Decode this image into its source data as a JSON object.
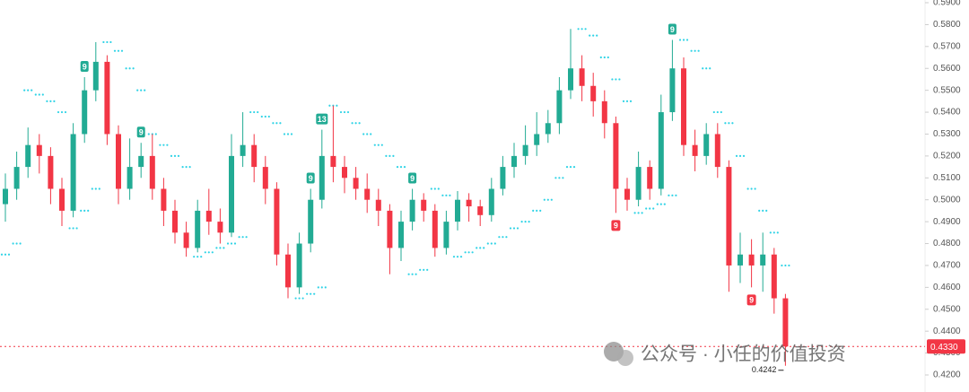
{
  "chart_data": {
    "type": "candlestick",
    "up_color": "#22ab94",
    "down_color": "#f23645",
    "sar_color": "#2fd3e6",
    "open": [
      0.498,
      0.505,
      0.515,
      0.525,
      0.52,
      0.505,
      0.495,
      0.53,
      0.55,
      0.563,
      0.53,
      0.505,
      0.515,
      0.52,
      0.505,
      0.495,
      0.485,
      0.478,
      0.495,
      0.49,
      0.485,
      0.52,
      0.525,
      0.515,
      0.505,
      0.475,
      0.46,
      0.48,
      0.5,
      0.52,
      0.515,
      0.51,
      0.505,
      0.5,
      0.495,
      0.478,
      0.49,
      0.5,
      0.495,
      0.478,
      0.49,
      0.5,
      0.497,
      0.493,
      0.505,
      0.515,
      0.52,
      0.525,
      0.53,
      0.535,
      0.55,
      0.56,
      0.552,
      0.545,
      0.535,
      0.505,
      0.5,
      0.515,
      0.505,
      0.54,
      0.56,
      0.525,
      0.52,
      0.53,
      0.515,
      0.47,
      0.475,
      0.47,
      0.475,
      0.455
    ],
    "high": [
      0.512,
      0.522,
      0.533,
      0.53,
      0.524,
      0.51,
      0.535,
      0.556,
      0.572,
      0.566,
      0.534,
      0.528,
      0.526,
      0.53,
      0.51,
      0.5,
      0.49,
      0.5,
      0.505,
      0.496,
      0.53,
      0.54,
      0.53,
      0.52,
      0.508,
      0.48,
      0.485,
      0.505,
      0.532,
      0.543,
      0.52,
      0.515,
      0.512,
      0.505,
      0.498,
      0.495,
      0.505,
      0.503,
      0.498,
      0.495,
      0.504,
      0.503,
      0.5,
      0.51,
      0.52,
      0.526,
      0.534,
      0.54,
      0.541,
      0.556,
      0.578,
      0.566,
      0.558,
      0.55,
      0.538,
      0.51,
      0.522,
      0.518,
      0.548,
      0.573,
      0.565,
      0.532,
      0.535,
      0.535,
      0.518,
      0.485,
      0.482,
      0.485,
      0.478,
      0.457
    ],
    "low": [
      0.49,
      0.5,
      0.51,
      0.512,
      0.498,
      0.488,
      0.492,
      0.526,
      0.545,
      0.525,
      0.498,
      0.5,
      0.51,
      0.5,
      0.488,
      0.48,
      0.474,
      0.476,
      0.484,
      0.48,
      0.483,
      0.515,
      0.508,
      0.498,
      0.47,
      0.455,
      0.457,
      0.476,
      0.496,
      0.508,
      0.503,
      0.5,
      0.494,
      0.488,
      0.466,
      0.472,
      0.486,
      0.49,
      0.474,
      0.475,
      0.486,
      0.49,
      0.488,
      0.49,
      0.502,
      0.51,
      0.516,
      0.52,
      0.526,
      0.53,
      0.546,
      0.545,
      0.538,
      0.528,
      0.494,
      0.495,
      0.497,
      0.5,
      0.502,
      0.536,
      0.52,
      0.513,
      0.516,
      0.51,
      0.458,
      0.462,
      0.46,
      0.458,
      0.448,
      0.4242
    ],
    "close": [
      0.505,
      0.515,
      0.525,
      0.52,
      0.505,
      0.495,
      0.53,
      0.55,
      0.563,
      0.53,
      0.505,
      0.515,
      0.52,
      0.505,
      0.495,
      0.485,
      0.478,
      0.495,
      0.49,
      0.485,
      0.52,
      0.525,
      0.515,
      0.505,
      0.475,
      0.46,
      0.48,
      0.5,
      0.52,
      0.515,
      0.51,
      0.505,
      0.5,
      0.495,
      0.478,
      0.49,
      0.5,
      0.495,
      0.478,
      0.49,
      0.5,
      0.497,
      0.493,
      0.505,
      0.515,
      0.52,
      0.525,
      0.53,
      0.535,
      0.55,
      0.56,
      0.552,
      0.545,
      0.535,
      0.505,
      0.5,
      0.515,
      0.505,
      0.54,
      0.56,
      0.525,
      0.52,
      0.53,
      0.515,
      0.47,
      0.475,
      0.47,
      0.475,
      0.455,
      0.433
    ],
    "sar": [
      0.475,
      0.48,
      0.55,
      0.548,
      0.545,
      0.54,
      0.487,
      0.495,
      0.505,
      0.572,
      0.568,
      0.56,
      0.55,
      0.53,
      0.525,
      0.52,
      0.515,
      0.474,
      0.476,
      0.478,
      0.48,
      0.483,
      0.54,
      0.538,
      0.535,
      0.53,
      0.455,
      0.457,
      0.46,
      0.543,
      0.54,
      0.535,
      0.53,
      0.525,
      0.52,
      0.515,
      0.466,
      0.468,
      0.505,
      0.502,
      0.474,
      0.476,
      0.478,
      0.48,
      0.483,
      0.487,
      0.49,
      0.495,
      0.5,
      0.51,
      0.515,
      0.578,
      0.575,
      0.565,
      0.555,
      0.545,
      0.494,
      0.496,
      0.498,
      0.502,
      0.573,
      0.568,
      0.56,
      0.54,
      0.535,
      0.52,
      0.505,
      0.495,
      0.485,
      0.47
    ],
    "upper_labels": [
      null,
      null,
      null,
      null,
      null,
      null,
      null,
      "9",
      null,
      null,
      null,
      null,
      "9",
      null,
      null,
      null,
      null,
      null,
      null,
      null,
      null,
      null,
      null,
      null,
      null,
      null,
      null,
      "9",
      "13",
      null,
      null,
      null,
      null,
      null,
      null,
      null,
      "9",
      null,
      null,
      null,
      null,
      null,
      null,
      null,
      null,
      null,
      null,
      null,
      null,
      null,
      null,
      null,
      null,
      null,
      null,
      null,
      null,
      null,
      null,
      "9",
      null,
      null,
      null,
      null,
      null,
      null,
      null,
      null,
      null,
      null
    ],
    "lower_labels": [
      null,
      null,
      null,
      null,
      null,
      null,
      null,
      null,
      null,
      null,
      null,
      null,
      null,
      null,
      null,
      null,
      null,
      null,
      null,
      null,
      null,
      null,
      null,
      null,
      null,
      null,
      null,
      null,
      null,
      null,
      null,
      null,
      null,
      null,
      null,
      null,
      null,
      null,
      null,
      null,
      null,
      null,
      null,
      null,
      null,
      null,
      null,
      null,
      null,
      null,
      null,
      null,
      null,
      null,
      "9",
      null,
      null,
      null,
      null,
      null,
      null,
      null,
      null,
      null,
      null,
      null,
      "9",
      null,
      null,
      null
    ],
    "ylim": [
      0.42,
      0.59
    ],
    "yticks": [
      {
        "value": 0.42,
        "label": "0.4200"
      },
      {
        "value": 0.43,
        "label": "0.4300"
      },
      {
        "value": 0.44,
        "label": "0.4400"
      },
      {
        "value": 0.45,
        "label": "0.4500"
      },
      {
        "value": 0.46,
        "label": "0.4600"
      },
      {
        "value": 0.47,
        "label": "0.4700"
      },
      {
        "value": 0.48,
        "label": "0.4800"
      },
      {
        "value": 0.49,
        "label": "0.4900"
      },
      {
        "value": 0.5,
        "label": "0.5000"
      },
      {
        "value": 0.51,
        "label": "0.5100"
      },
      {
        "value": 0.52,
        "label": "0.5200"
      },
      {
        "value": 0.53,
        "label": "0.5300"
      },
      {
        "value": 0.54,
        "label": "0.5400"
      },
      {
        "value": 0.55,
        "label": "0.5500"
      },
      {
        "value": 0.56,
        "label": "0.5600"
      },
      {
        "value": 0.57,
        "label": "0.5700"
      },
      {
        "value": 0.58,
        "label": "0.5800"
      },
      {
        "value": 0.59,
        "label": "0.5900"
      }
    ],
    "last_price": {
      "value": 0.433,
      "label": "0.4330"
    },
    "min_label": {
      "value": 0.4242,
      "label": "0.4242"
    },
    "watermark": "公众号 · 小任的价值投资"
  }
}
